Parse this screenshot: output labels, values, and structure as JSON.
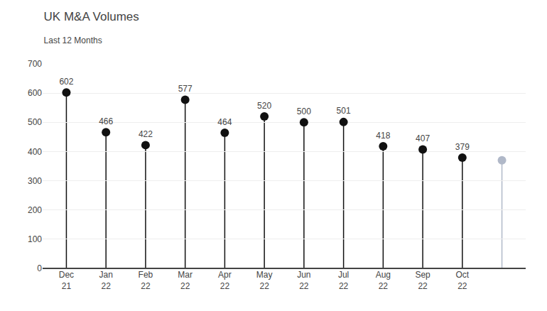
{
  "chart_data": {
    "type": "lollipop",
    "title": "UK M&A Volumes",
    "subtitle": "Last 12 Months",
    "categories": [
      "Dec\n21",
      "Jan\n22",
      "Feb\n22",
      "Mar\n22",
      "Apr\n22",
      "May\n22",
      "Jun\n22",
      "Jul\n22",
      "Aug\n22",
      "Sep\n22",
      "Oct\n22",
      null
    ],
    "values": [
      602,
      466,
      422,
      577,
      464,
      520,
      500,
      501,
      418,
      407,
      379,
      370
    ],
    "value_labels": [
      "602",
      "466",
      "422",
      "577",
      "464",
      "520",
      "500",
      "501",
      "418",
      "407",
      "379",
      null
    ],
    "colors": [
      "#111111",
      "#111111",
      "#111111",
      "#111111",
      "#111111",
      "#111111",
      "#111111",
      "#111111",
      "#111111",
      "#111111",
      "#111111",
      "#b0b8c8"
    ],
    "data_labels": true,
    "ylim": [
      0,
      700
    ],
    "yticks": [
      0,
      100,
      200,
      300,
      400,
      500,
      600,
      700
    ],
    "grid": true
  }
}
